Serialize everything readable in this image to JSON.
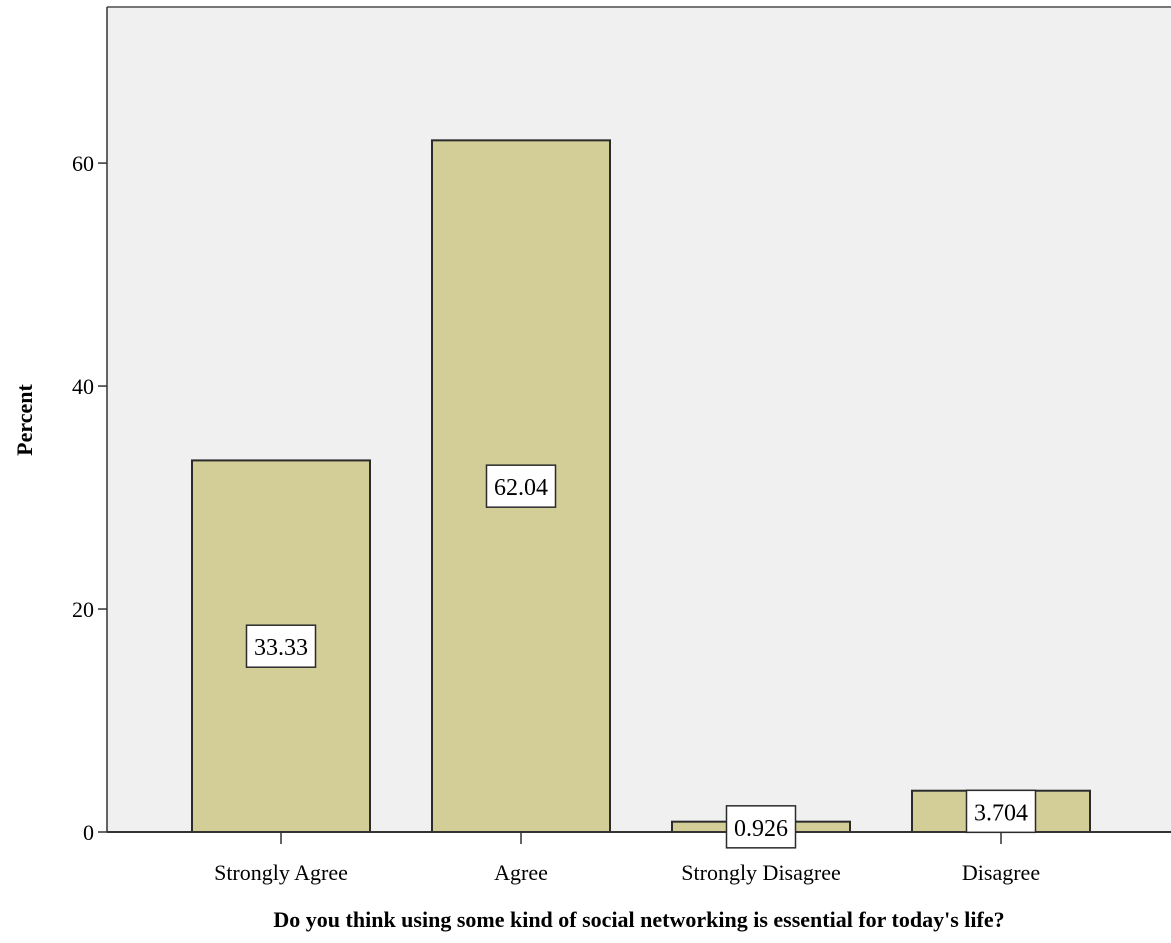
{
  "chart_data": {
    "type": "bar",
    "title": "",
    "xlabel": "Do you think using some kind of social networking is essential for today's life?",
    "ylabel": "Percent",
    "categories": [
      "Strongly Agree",
      "Agree",
      "Strongly Disagree",
      "Disagree"
    ],
    "values": [
      33.33,
      62.04,
      0.926,
      3.704
    ],
    "data_labels": [
      "33.33",
      "62.04",
      "0.926",
      "3.704"
    ],
    "ylim": [
      0,
      74
    ],
    "yticks": [
      0,
      20,
      40,
      60
    ],
    "ytick_labels": [
      "0",
      "20",
      "40",
      "60"
    ],
    "grid": false,
    "legend": "none",
    "colors": {
      "bar_fill": "#d3cd98",
      "bar_stroke": "#2b2b2b",
      "plot_background": "#f0f0f0",
      "axis": "#333333",
      "label_box_fill": "#ffffff"
    }
  }
}
